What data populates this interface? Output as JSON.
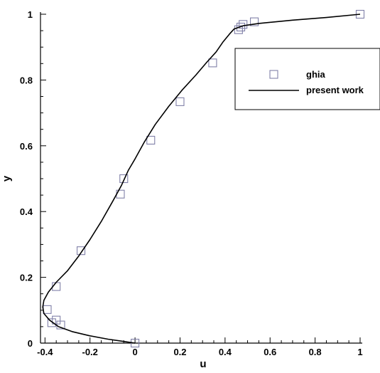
{
  "chart_data": {
    "type": "line",
    "xlabel": "u",
    "ylabel": "y",
    "xlim": [
      -0.42,
      1.0
    ],
    "ylim": [
      0,
      1.0
    ],
    "grid": false,
    "legend_placement": "top-right",
    "xticks": [
      -0.4,
      -0.2,
      0,
      0.2,
      0.4,
      0.6,
      0.8,
      1
    ],
    "xtick_labels": [
      "-0.4",
      "-0.2",
      "0",
      "0.2",
      "0.4",
      "0.6",
      "0.8",
      "1"
    ],
    "yticks": [
      0,
      0.2,
      0.4,
      0.6,
      0.8,
      1
    ],
    "ytick_labels": [
      "0",
      "0.2",
      "0.4",
      "0.6",
      "0.8",
      "1"
    ],
    "legend": [
      "ghia",
      "present work"
    ],
    "series": [
      {
        "name": "ghia",
        "style": "markers",
        "marker": "open-square",
        "color": "#8080a8",
        "x": [
          0.0,
          -0.33,
          -0.37,
          -0.35,
          -0.39,
          -0.35,
          -0.24,
          -0.065,
          -0.05,
          0.07,
          0.2,
          0.345,
          0.46,
          0.47,
          0.48,
          0.53,
          1.0
        ],
        "y": [
          0.0,
          0.055,
          0.062,
          0.07,
          0.102,
          0.172,
          0.281,
          0.453,
          0.5,
          0.617,
          0.734,
          0.852,
          0.953,
          0.961,
          0.969,
          0.977,
          1.0
        ]
      },
      {
        "name": "present work",
        "style": "line",
        "color": "#000000",
        "x": [
          0.0,
          -0.05,
          -0.12,
          -0.2,
          -0.28,
          -0.34,
          -0.38,
          -0.405,
          -0.41,
          -0.405,
          -0.385,
          -0.35,
          -0.3,
          -0.25,
          -0.2,
          -0.15,
          -0.1,
          -0.06,
          -0.03,
          0.0,
          0.04,
          0.09,
          0.15,
          0.21,
          0.27,
          0.32,
          0.36,
          0.39,
          0.42,
          0.44,
          0.48,
          0.55,
          0.7,
          0.85,
          1.0
        ],
        "y": [
          0.0,
          0.005,
          0.012,
          0.022,
          0.035,
          0.05,
          0.07,
          0.09,
          0.11,
          0.13,
          0.155,
          0.185,
          0.22,
          0.265,
          0.315,
          0.37,
          0.43,
          0.48,
          0.525,
          0.56,
          0.61,
          0.665,
          0.72,
          0.77,
          0.815,
          0.855,
          0.885,
          0.915,
          0.94,
          0.955,
          0.965,
          0.972,
          0.982,
          0.99,
          1.0
        ]
      }
    ]
  }
}
